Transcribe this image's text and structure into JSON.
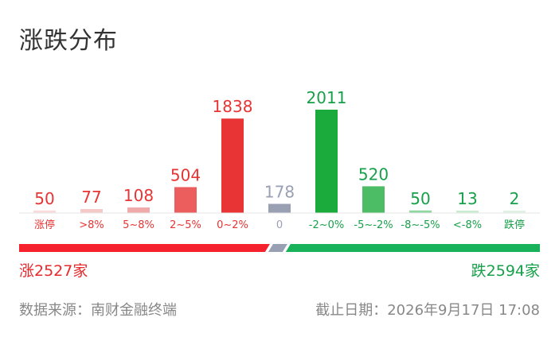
{
  "title": "涨跌分布",
  "chart_data": {
    "type": "bar",
    "categories": [
      "涨停",
      ">8%",
      "5~8%",
      "2~5%",
      "0~2%",
      "0",
      "-2~0%",
      "-5~-2%",
      "-8~-5%",
      "<-8%",
      "跌停"
    ],
    "values": [
      50,
      77,
      108,
      504,
      1838,
      178,
      2011,
      520,
      50,
      13,
      2
    ],
    "bar_colors": [
      "#f9dcdc",
      "#f6c9c9",
      "#f0aaaa",
      "#ec5d5d",
      "#e83434",
      "#9aa0b4",
      "#1aab3c",
      "#4cbc65",
      "#8fd8a2",
      "#c7ecd0",
      "#def3e4"
    ],
    "text_colors": [
      "#e83434",
      "#e83434",
      "#e83434",
      "#e83434",
      "#e83434",
      "#9aa0b4",
      "#17a04a",
      "#17a04a",
      "#17a04a",
      "#17a04a",
      "#17a04a"
    ],
    "ylim": [
      0,
      2011
    ]
  },
  "ratio_bar": {
    "up": 2527,
    "flat": 178,
    "down": 2594,
    "up_color": "#f5222d",
    "flat_color": "#9aa0b4",
    "down_color": "#17b25a"
  },
  "summary": {
    "up_text": "涨2527家",
    "down_text": "跌2594家"
  },
  "footer": {
    "source": "数据来源：南财金融终端",
    "date": "截止日期：2026年9月17日 17:08"
  }
}
